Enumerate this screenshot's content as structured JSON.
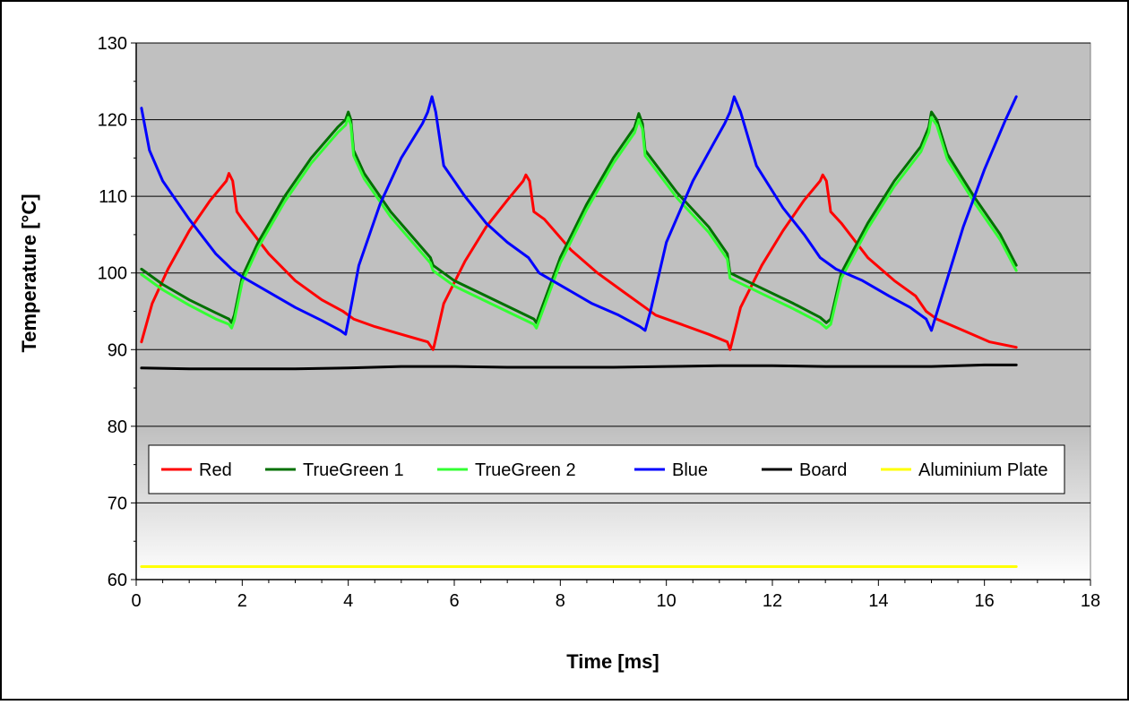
{
  "chart_data": {
    "type": "line",
    "title": "",
    "xlabel": "Time [ms]",
    "ylabel": "Temperature [°C]",
    "xlim": [
      0,
      18
    ],
    "ylim": [
      60,
      130
    ],
    "x_ticks": [
      "0",
      "2",
      "4",
      "6",
      "8",
      "10",
      "12",
      "14",
      "16",
      "18"
    ],
    "y_ticks": [
      "60",
      "70",
      "80",
      "90",
      "100",
      "110",
      "120",
      "130"
    ],
    "grid": "horizontal",
    "legend_position": "inside-lower",
    "series": [
      {
        "name": "Red",
        "color": "#ff0000",
        "x": [
          0.1,
          0.3,
          0.6,
          1.0,
          1.4,
          1.7,
          1.75,
          1.82,
          1.9,
          2.0,
          2.5,
          3.0,
          3.5,
          3.9,
          4.1,
          4.5,
          5.0,
          5.5,
          5.6,
          5.62,
          5.8,
          6.2,
          6.6,
          7.0,
          7.3,
          7.35,
          7.42,
          7.5,
          7.7,
          8.2,
          8.7,
          9.2,
          9.6,
          9.8,
          10.2,
          10.8,
          11.15,
          11.2,
          11.22,
          11.4,
          11.8,
          12.2,
          12.6,
          12.9,
          12.95,
          13.02,
          13.1,
          13.3,
          13.8,
          14.3,
          14.7,
          14.9,
          15.1,
          15.6,
          16.1,
          16.6
        ],
        "y": [
          91,
          96,
          100.5,
          105.5,
          109.5,
          112,
          113,
          112,
          108,
          107,
          102.5,
          99,
          96.5,
          95,
          94,
          93,
          92,
          91,
          90,
          90.5,
          96,
          101.5,
          106,
          109.5,
          112,
          112.8,
          112,
          108,
          107,
          103,
          100,
          97.5,
          95.5,
          94.5,
          93.5,
          92,
          91,
          90,
          90.5,
          95.5,
          101,
          105.5,
          109.5,
          112,
          112.8,
          112,
          108,
          106.5,
          102,
          99,
          97,
          95,
          94,
          92.5,
          91,
          90.3
        ]
      },
      {
        "name": "TrueGreen 1",
        "color": "#007000",
        "x": [
          0.1,
          0.5,
          1.0,
          1.5,
          1.75,
          1.8,
          1.85,
          2.0,
          2.3,
          2.8,
          3.3,
          3.8,
          3.95,
          4.0,
          4.05,
          4.1,
          4.3,
          4.8,
          5.3,
          5.55,
          5.6,
          6.0,
          6.6,
          7.2,
          7.5,
          7.55,
          7.6,
          8.0,
          8.5,
          9.0,
          9.4,
          9.48,
          9.55,
          9.6,
          10.2,
          10.8,
          11.15,
          11.2,
          11.8,
          12.4,
          12.9,
          13.02,
          13.1,
          13.3,
          13.8,
          14.3,
          14.8,
          14.95,
          15.0,
          15.1,
          15.3,
          15.8,
          16.3,
          16.6
        ],
        "y": [
          100.5,
          98.5,
          96.5,
          94.8,
          94,
          93.5,
          94.5,
          99.5,
          104,
          110,
          115,
          119,
          120,
          121,
          120,
          116,
          113,
          108,
          104,
          102,
          101,
          99,
          97,
          95,
          94,
          93.5,
          94.5,
          102,
          109,
          115,
          119,
          120.8,
          119.5,
          116,
          110.5,
          106,
          102.5,
          100,
          98,
          96,
          94.2,
          93.5,
          94,
          100,
          106.5,
          112,
          116.5,
          119,
          121,
          120,
          115.5,
          110,
          105,
          101
        ]
      },
      {
        "name": "TrueGreen 2",
        "color": "#33ff33",
        "x": [
          0.1,
          0.5,
          1.0,
          1.5,
          1.75,
          1.8,
          1.85,
          2.0,
          2.3,
          2.8,
          3.3,
          3.8,
          3.95,
          4.0,
          4.05,
          4.1,
          4.3,
          4.8,
          5.3,
          5.55,
          5.6,
          6.0,
          6.6,
          7.2,
          7.5,
          7.55,
          7.6,
          8.0,
          8.5,
          9.0,
          9.4,
          9.48,
          9.55,
          9.6,
          10.2,
          10.8,
          11.15,
          11.2,
          11.8,
          12.4,
          12.9,
          13.02,
          13.1,
          13.3,
          13.8,
          14.3,
          14.8,
          14.95,
          15.0,
          15.1,
          15.3,
          15.8,
          16.3,
          16.6
        ],
        "y": [
          99.8,
          97.8,
          95.8,
          94,
          93.3,
          92.8,
          93.8,
          98.8,
          103.3,
          109.3,
          114.3,
          118.3,
          119.3,
          120.3,
          119.3,
          115.3,
          112.3,
          107.3,
          103.3,
          101.3,
          100.3,
          98.3,
          96.3,
          94.3,
          93.3,
          92.8,
          93.8,
          101.3,
          108.3,
          114.3,
          118.3,
          120,
          118.8,
          115.3,
          109.8,
          105.3,
          101.8,
          99.3,
          97.3,
          95.3,
          93.5,
          92.8,
          93.3,
          99.3,
          105.8,
          111.3,
          115.8,
          118.3,
          120.3,
          119.3,
          114.8,
          109.3,
          104.3,
          100.3
        ]
      },
      {
        "name": "Blue",
        "color": "#0000ff",
        "x": [
          0.1,
          0.25,
          0.5,
          1.0,
          1.5,
          1.8,
          2.0,
          2.5,
          3.0,
          3.5,
          3.85,
          3.95,
          4.05,
          4.2,
          4.6,
          5.0,
          5.4,
          5.5,
          5.58,
          5.65,
          5.8,
          6.2,
          6.6,
          7.0,
          7.4,
          7.6,
          8.1,
          8.6,
          9.1,
          9.5,
          9.6,
          9.7,
          10.0,
          10.5,
          10.9,
          11.1,
          11.2,
          11.28,
          11.4,
          11.7,
          12.2,
          12.6,
          12.9,
          13.2,
          13.7,
          14.2,
          14.6,
          14.9,
          15.0,
          15.2,
          15.6,
          16.0,
          16.4,
          16.6
        ],
        "y": [
          121.5,
          116,
          112,
          107,
          102.5,
          100.5,
          99.5,
          97.5,
          95.5,
          93.8,
          92.5,
          92,
          95.5,
          101,
          109,
          115,
          119.5,
          121,
          123,
          121,
          114,
          110,
          106.5,
          104,
          102,
          100,
          98,
          96,
          94.5,
          93,
          92.5,
          95,
          104,
          112,
          117,
          119.5,
          121,
          123,
          121,
          114,
          108.5,
          105,
          102,
          100.5,
          99,
          97,
          95.5,
          94,
          92.5,
          97,
          106,
          113.5,
          120,
          123
        ]
      },
      {
        "name": "Board",
        "color": "#000000",
        "x": [
          0.1,
          1,
          2,
          3,
          4,
          5,
          6,
          7,
          8,
          9,
          10,
          11,
          12,
          13,
          14,
          15,
          16,
          16.6
        ],
        "y": [
          87.6,
          87.5,
          87.5,
          87.5,
          87.6,
          87.8,
          87.8,
          87.7,
          87.7,
          87.7,
          87.8,
          87.9,
          87.9,
          87.8,
          87.8,
          87.8,
          88,
          88
        ]
      },
      {
        "name": "Aluminium Plate",
        "color": "#ffff00",
        "x": [
          0.1,
          16.6
        ],
        "y": [
          61.7,
          61.7
        ]
      }
    ]
  }
}
